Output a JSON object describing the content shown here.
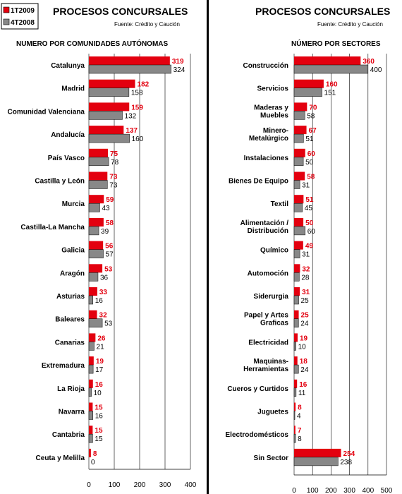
{
  "legend": {
    "series_a": "1T2009",
    "series_b": "4T2008"
  },
  "colors": {
    "series_a": "#e3000f",
    "series_b": "#888888",
    "divider": "#000000",
    "grid": "#000000"
  },
  "chart_data": [
    {
      "type": "bar",
      "orientation": "horizontal",
      "title": "PROCESOS CONCURSALES",
      "source": "Fuente: Crédito y Caución",
      "subtitle": "NUMERO POR COMUNIDADES AUTÓNOMAS",
      "categories": [
        "Catalunya",
        "Madrid",
        "Comunidad Valenciana",
        "Andalucía",
        "País Vasco",
        "Castilla y León",
        "Murcia",
        "Castilla-La Mancha",
        "Galicia",
        "Aragón",
        "Asturias",
        "Baleares",
        "Canarias",
        "Extremadura",
        "La Rioja",
        "Navarra",
        "Cantabria",
        "Ceuta y Melilla"
      ],
      "series": [
        {
          "name": "1T2009",
          "values": [
            319,
            182,
            159,
            137,
            75,
            73,
            59,
            58,
            56,
            53,
            33,
            32,
            26,
            19,
            16,
            15,
            15,
            8
          ]
        },
        {
          "name": "4T2008",
          "values": [
            324,
            158,
            132,
            160,
            78,
            73,
            43,
            39,
            57,
            36,
            16,
            53,
            21,
            17,
            10,
            16,
            15,
            0
          ]
        }
      ],
      "xlim": [
        0,
        400
      ],
      "ticks": [
        0,
        100,
        200,
        300,
        400
      ],
      "grid": true
    },
    {
      "type": "bar",
      "orientation": "horizontal",
      "title": "PROCESOS CONCURSALES",
      "source": "Fuente: Crédito y Caución",
      "subtitle": "NÚMERO POR SECTORES",
      "categories": [
        "Construcción",
        "Servicios",
        "Maderas y|Muebles",
        "Minero-|Metalúrgico",
        "Instalaciones",
        "Bienes De Equipo",
        "Textil",
        "Alimentación /|Distribución",
        "Químico",
        "Automoción",
        "Siderurgia",
        "Papel y Artes|Graficas",
        "Electricidad",
        "Maquinas-|Herramientas",
        "Cueros y Curtidos",
        "Juguetes",
        "Electrodomésticos",
        "Sin Sector"
      ],
      "series": [
        {
          "name": "1T2009",
          "values": [
            360,
            160,
            70,
            67,
            60,
            58,
            51,
            50,
            49,
            32,
            31,
            25,
            19,
            18,
            16,
            8,
            7,
            254
          ]
        },
        {
          "name": "4T2008",
          "values": [
            400,
            151,
            58,
            51,
            50,
            31,
            45,
            60,
            31,
            28,
            25,
            24,
            10,
            24,
            11,
            4,
            8,
            238
          ]
        }
      ],
      "xlim": [
        0,
        500
      ],
      "ticks": [
        0,
        100,
        200,
        300,
        400,
        500
      ],
      "grid": true
    }
  ]
}
